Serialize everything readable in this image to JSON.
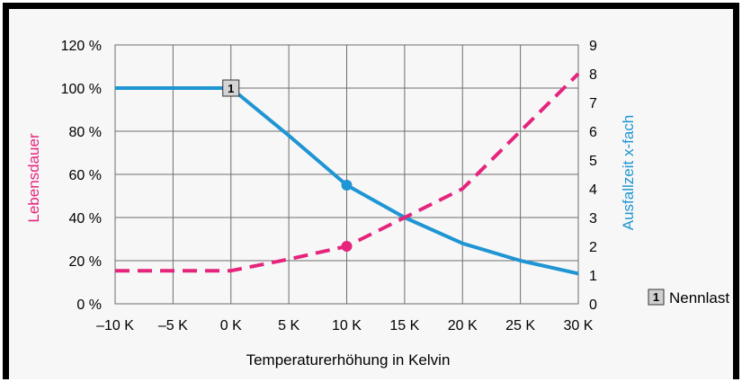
{
  "chart_data": {
    "type": "line",
    "xlabel": "Temperaturerhöhung in Kelvin",
    "ylabel_left": "Lebensdauer",
    "ylabel_right": "Ausfallzeit x-fach",
    "x_ticks": [
      "–10 K",
      "–5 K",
      "0 K",
      "5 K",
      "10 K",
      "15 K",
      "20 K",
      "25 K",
      "30 K"
    ],
    "x_values": [
      -10,
      -5,
      0,
      5,
      10,
      15,
      20,
      25,
      30
    ],
    "xlim": [
      -10,
      30
    ],
    "ylim_left": [
      0,
      120
    ],
    "ylim_right": [
      0,
      9
    ],
    "y_left_ticks": [
      "0 %",
      "20 %",
      "40 %",
      "60 %",
      "80 %",
      "100 %",
      "120 %"
    ],
    "y_right_ticks": [
      "0",
      "1",
      "2",
      "3",
      "4",
      "5",
      "6",
      "7",
      "8",
      "9"
    ],
    "grid": true,
    "series": [
      {
        "axis": "left",
        "color": "#1f95d3",
        "style": "solid",
        "x": [
          -10,
          -5,
          0,
          5,
          10,
          15,
          20,
          25,
          30
        ],
        "values": [
          100,
          100,
          100,
          78,
          55,
          40,
          28,
          20,
          14
        ],
        "marker_at": 10
      },
      {
        "axis": "right",
        "color": "#e5247c",
        "style": "dashed",
        "x": [
          -10,
          -5,
          0,
          5,
          10,
          15,
          20,
          25,
          30
        ],
        "values": [
          1.15,
          1.15,
          1.15,
          1.55,
          2.0,
          3.0,
          4.0,
          6.0,
          8.0
        ],
        "marker_at": 10
      }
    ],
    "annotation": {
      "badge": "1",
      "x": 0,
      "series": 0
    },
    "legend": {
      "badge": "1",
      "label": "Nennlast",
      "placement": "right"
    }
  },
  "colors": {
    "lebensdauer": "#e5247c",
    "ausfallzeit": "#1f95d3",
    "grid": "#6e6e6e",
    "frame_bg": "#f7f7f7"
  }
}
